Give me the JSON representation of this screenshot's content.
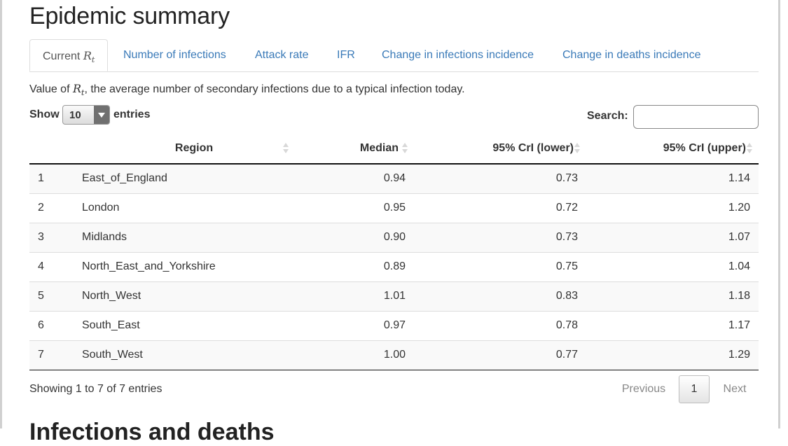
{
  "page": {
    "title": "Epidemic summary",
    "next_section_heading": "Infections and deaths"
  },
  "tabs": [
    {
      "label": "Current",
      "math": "R",
      "sub": "t",
      "active": true
    },
    {
      "label": "Number of infections"
    },
    {
      "label": "Attack rate"
    },
    {
      "label": "IFR"
    },
    {
      "label": "Change in infections incidence"
    },
    {
      "label": "Change in deaths incidence"
    }
  ],
  "description": {
    "before": "Value of",
    "math": "R",
    "sub": "t",
    "after": ", the average number of secondary infections due to a typical infection today."
  },
  "controls": {
    "show_label": "Show",
    "entries_value": "10",
    "entries_label": "entries",
    "search_label": "Search:",
    "search_value": ""
  },
  "table": {
    "headers": {
      "index": "",
      "region": "Region",
      "median": "Median",
      "lower": "95% CrI (lower)",
      "upper": "95% CrI (upper)"
    },
    "rows": [
      {
        "index": "1",
        "region": "East_of_England",
        "median": "0.94",
        "lower": "0.73",
        "upper": "1.14"
      },
      {
        "index": "2",
        "region": "London",
        "median": "0.95",
        "lower": "0.72",
        "upper": "1.20"
      },
      {
        "index": "3",
        "region": "Midlands",
        "median": "0.90",
        "lower": "0.73",
        "upper": "1.07"
      },
      {
        "index": "4",
        "region": "North_East_and_Yorkshire",
        "median": "0.89",
        "lower": "0.75",
        "upper": "1.04"
      },
      {
        "index": "5",
        "region": "North_West",
        "median": "1.01",
        "lower": "0.83",
        "upper": "1.18"
      },
      {
        "index": "6",
        "region": "South_East",
        "median": "0.97",
        "lower": "0.78",
        "upper": "1.17"
      },
      {
        "index": "7",
        "region": "South_West",
        "median": "1.00",
        "lower": "0.77",
        "upper": "1.29"
      }
    ]
  },
  "footer": {
    "info": "Showing 1 to 7 of 7 entries",
    "previous_label": "Previous",
    "page_label": "1",
    "next_label": "Next"
  }
}
